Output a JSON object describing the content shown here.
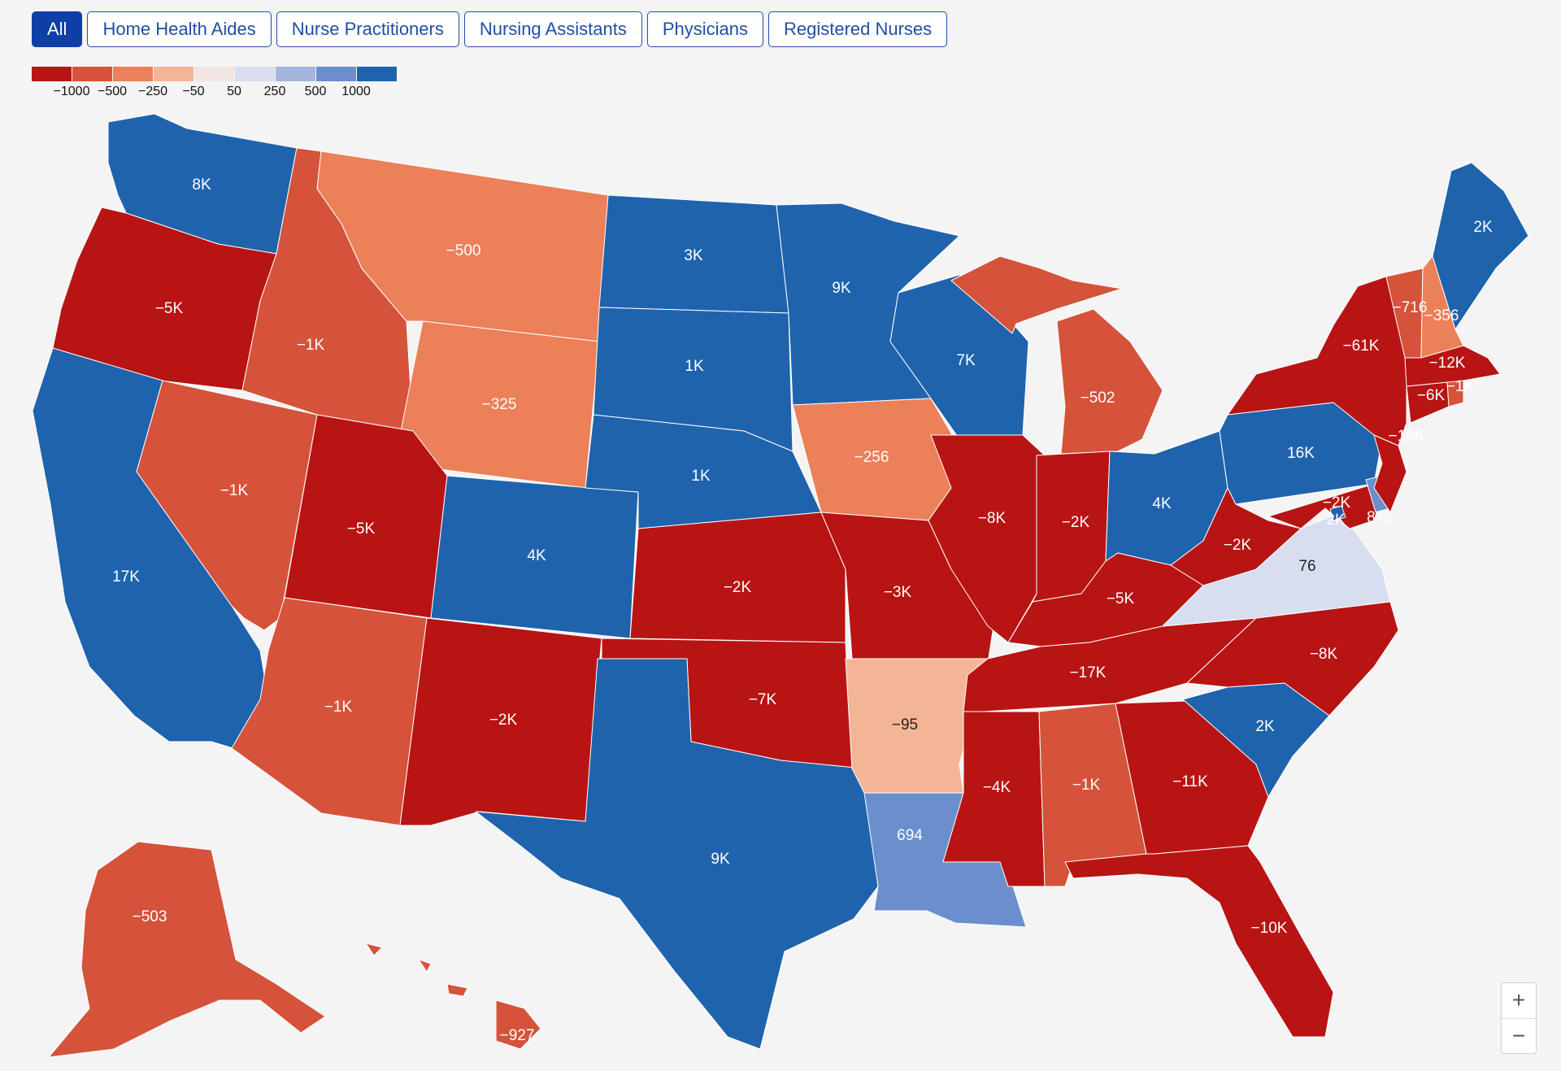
{
  "filters": [
    {
      "label": "All",
      "active": true
    },
    {
      "label": "Home Health Aides",
      "active": false
    },
    {
      "label": "Nurse Practitioners",
      "active": false
    },
    {
      "label": "Nursing Assistants",
      "active": false
    },
    {
      "label": "Physicians",
      "active": false
    },
    {
      "label": "Registered Nurses",
      "active": false
    }
  ],
  "legend": {
    "colors": [
      "#b81414",
      "#d4533a",
      "#ec8059",
      "#f4b596",
      "#f2e6e1",
      "#d7def0",
      "#a4b6dd",
      "#6a8fcc",
      "#1f63ad"
    ],
    "labels": [
      "−1000",
      "−500",
      "−250",
      "−50",
      "50",
      "250",
      "500",
      "1000"
    ]
  },
  "map": {
    "states": [
      {
        "id": "WA",
        "label": "8K",
        "value": 8000
      },
      {
        "id": "OR",
        "label": "−5K",
        "value": -5000
      },
      {
        "id": "CA",
        "label": "17K",
        "value": 17000
      },
      {
        "id": "ID",
        "label": "−1K",
        "value": -1000
      },
      {
        "id": "NV",
        "label": "−1K",
        "value": -1000
      },
      {
        "id": "MT",
        "label": "−500",
        "value": -500
      },
      {
        "id": "WY",
        "label": "−325",
        "value": -325
      },
      {
        "id": "UT",
        "label": "−5K",
        "value": -5000
      },
      {
        "id": "AZ",
        "label": "−1K",
        "value": -1000
      },
      {
        "id": "CO",
        "label": "4K",
        "value": 4000
      },
      {
        "id": "NM",
        "label": "−2K",
        "value": -2000
      },
      {
        "id": "ND",
        "label": "3K",
        "value": 3000
      },
      {
        "id": "SD",
        "label": "1K",
        "value": 1000
      },
      {
        "id": "NE",
        "label": "1K",
        "value": 1000
      },
      {
        "id": "KS",
        "label": "−2K",
        "value": -2000
      },
      {
        "id": "OK",
        "label": "−7K",
        "value": -7000
      },
      {
        "id": "TX",
        "label": "9K",
        "value": 9000
      },
      {
        "id": "MN",
        "label": "9K",
        "value": 9000
      },
      {
        "id": "IA",
        "label": "−256",
        "value": -256
      },
      {
        "id": "MO",
        "label": "−3K",
        "value": -3000
      },
      {
        "id": "AR",
        "label": "−95",
        "value": -95
      },
      {
        "id": "LA",
        "label": "694",
        "value": 694
      },
      {
        "id": "WI",
        "label": "7K",
        "value": 7000
      },
      {
        "id": "IL",
        "label": "−8K",
        "value": -8000
      },
      {
        "id": "MI",
        "label": "−502",
        "value": -502
      },
      {
        "id": "IN",
        "label": "−2K",
        "value": -2000
      },
      {
        "id": "OH",
        "label": "4K",
        "value": 4000
      },
      {
        "id": "KY",
        "label": "−5K",
        "value": -5000
      },
      {
        "id": "TN",
        "label": "−17K",
        "value": -17000
      },
      {
        "id": "MS",
        "label": "−4K",
        "value": -4000
      },
      {
        "id": "AL",
        "label": "−1K",
        "value": -1000
      },
      {
        "id": "GA",
        "label": "−11K",
        "value": -11000
      },
      {
        "id": "FL",
        "label": "−10K",
        "value": -10000
      },
      {
        "id": "SC",
        "label": "2K",
        "value": 2000
      },
      {
        "id": "NC",
        "label": "−8K",
        "value": -8000
      },
      {
        "id": "VA",
        "label": "76",
        "value": 76
      },
      {
        "id": "WV",
        "label": "−2K",
        "value": -2000
      },
      {
        "id": "PA",
        "label": "16K",
        "value": 16000
      },
      {
        "id": "NY",
        "label": "−61K",
        "value": -61000
      },
      {
        "id": "VT",
        "label": "−716",
        "value": -716
      },
      {
        "id": "NH",
        "label": "−356",
        "value": -356
      },
      {
        "id": "ME",
        "label": "2K",
        "value": 2000
      },
      {
        "id": "MA",
        "label": "−12K",
        "value": -12000
      },
      {
        "id": "RI",
        "label": "−1K",
        "value": -1000
      },
      {
        "id": "CT",
        "label": "−6K",
        "value": -6000
      },
      {
        "id": "NJ",
        "label": "−18K",
        "value": -18000
      },
      {
        "id": "MD",
        "label": "−2K",
        "value": -2000
      },
      {
        "id": "DC",
        "label": "2K",
        "value": 2000
      },
      {
        "id": "DE",
        "label": "872",
        "value": 872
      },
      {
        "id": "AK",
        "label": "−503",
        "value": -503
      },
      {
        "id": "HI",
        "label": "−927",
        "value": -927
      }
    ]
  },
  "zoom": {
    "in_label": "+",
    "out_label": "−"
  }
}
